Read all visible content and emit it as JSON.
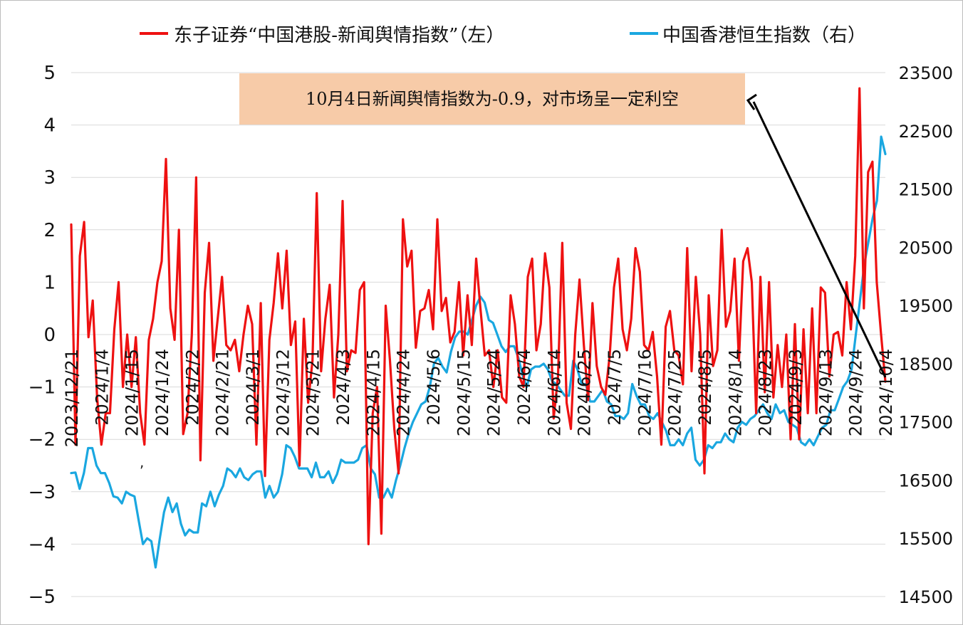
{
  "chart_data": {
    "type": "line",
    "legend": {
      "placement": "top",
      "items": [
        {
          "label": "东子证券“中国港股-新闻舆情指数”（左）",
          "color": "#ee1111"
        },
        {
          "label": "中国香港恒生指数（右）",
          "color": "#1aa7e0"
        }
      ]
    },
    "annotation": "10月4日新闻舆情指数为-0.9，对市场呈一定利空",
    "annotation_bg": "#f7cba8",
    "x_tick_labels": [
      "2023/12/21",
      "2024/1/4",
      "2024/1/15",
      "2024/1/24",
      "2024/2/2",
      "2024/2/21",
      "2024/3/1",
      "2024/3/12",
      "2024/3/21",
      "2024/4/3",
      "2024/4/15",
      "2024/4/24",
      "2024/5/6",
      "2024/5/15",
      "2024/5/24",
      "2024/6/4",
      "2024/6/14",
      "2024/6/25",
      "2024/7/5",
      "2024/7/16",
      "2024/7/25",
      "2024/8/5",
      "2024/8/14",
      "2024/8/23",
      "2024/9/3",
      "2024/9/13",
      "2024/9/24",
      "2024/10/4"
    ],
    "y_left": {
      "min": -5,
      "max": 5,
      "ticks": [
        "5",
        "4",
        "3",
        "2",
        "1",
        "0",
        "−1",
        "−2",
        "−3",
        "−4",
        "−5"
      ]
    },
    "y_right": {
      "min": 14500,
      "max": 23500,
      "ticks": [
        "23500",
        "22500",
        "21500",
        "20500",
        "19500",
        "18500",
        "17500",
        "16500",
        "15500",
        "14500"
      ]
    },
    "grid": true,
    "stray_mark": ",",
    "series": [
      {
        "name": "东子证券“中国港股-新闻舆情指数”（左）",
        "axis": "left",
        "color": "#ee1111",
        "values": [
          2.1,
          -2.1,
          1.5,
          2.15,
          -0.05,
          0.65,
          -1.2,
          -2.1,
          -1.5,
          -1.5,
          0.1,
          1.0,
          -1.0,
          0.0,
          -1.0,
          -0.05,
          -1.5,
          -2.1,
          -0.1,
          0.3,
          1.0,
          1.4,
          3.35,
          0.5,
          -0.1,
          2.0,
          -1.9,
          -1.5,
          0.0,
          3.0,
          -2.4,
          0.8,
          1.75,
          -0.5,
          0.3,
          1.1,
          -0.2,
          -0.3,
          -0.1,
          -0.7,
          0.0,
          0.55,
          0.2,
          -2.1,
          0.6,
          -2.7,
          -0.1,
          0.6,
          1.55,
          0.5,
          1.6,
          -0.2,
          0.25,
          -2.5,
          0.3,
          -1.3,
          -0.5,
          2.7,
          -0.7,
          0.3,
          0.95,
          -1.2,
          0.0,
          2.55,
          -0.7,
          -0.3,
          -0.35,
          0.85,
          1.0,
          -4.0,
          -1.5,
          -1.0,
          -3.8,
          0.55,
          -0.5,
          -1.8,
          -2.65,
          2.2,
          1.3,
          1.6,
          -0.25,
          0.45,
          0.5,
          0.85,
          0.1,
          2.2,
          0.45,
          0.7,
          -0.15,
          0.05,
          1.0,
          -0.4,
          0.75,
          -0.2,
          1.45,
          0.5,
          -0.4,
          -0.3,
          -1.0,
          -0.3,
          -1.2,
          -1.3,
          0.75,
          0.2,
          -0.8,
          -1.0,
          1.1,
          1.45,
          -0.3,
          0.2,
          1.55,
          0.9,
          -1.6,
          -0.8,
          1.75,
          -1.3,
          -1.8,
          0.0,
          1.05,
          -0.2,
          -1.25,
          0.6,
          -0.6,
          -1.0,
          -1.15,
          -0.4,
          0.9,
          1.45,
          0.1,
          -0.3,
          0.3,
          1.65,
          1.2,
          -0.2,
          -0.3,
          0.05,
          -0.8,
          -2.1,
          0.15,
          0.45,
          -0.3,
          -0.4,
          -0.95,
          1.65,
          -0.7,
          1.1,
          0.0,
          -2.65,
          0.75,
          -0.6,
          -0.3,
          2.0,
          0.15,
          0.45,
          1.45,
          -0.5,
          1.4,
          1.65,
          1.0,
          -1.5,
          1.1,
          -1.1,
          1.0,
          -1.2,
          -0.2,
          -1.0,
          0.0,
          -2.0,
          0.2,
          -2.0,
          0.1,
          -1.5,
          0.5,
          -1.5,
          0.9,
          0.8,
          -0.8,
          0.0,
          0.05,
          -0.4,
          1.0,
          0.1,
          1.5,
          4.7,
          0.5,
          3.1,
          3.3,
          1.0,
          0.0,
          -0.9
        ]
      },
      {
        "name": "中国香港恒生指数（右）",
        "axis": "right",
        "color": "#1aa7e0",
        "values": [
          16620,
          16630,
          16350,
          16620,
          17050,
          17050,
          16750,
          16620,
          16620,
          16450,
          16220,
          16200,
          16100,
          16300,
          16250,
          16220,
          15800,
          15400,
          15500,
          15450,
          15000,
          15500,
          15950,
          16200,
          15950,
          16100,
          15750,
          15550,
          15650,
          15600,
          15600,
          16100,
          16050,
          16300,
          16050,
          16250,
          16400,
          16700,
          16650,
          16550,
          16700,
          16550,
          16500,
          16600,
          16650,
          16650,
          16200,
          16400,
          16200,
          16300,
          16600,
          17100,
          17050,
          16900,
          16700,
          16700,
          16700,
          16550,
          16800,
          16550,
          16550,
          16650,
          16450,
          16600,
          16850,
          16800,
          16800,
          16800,
          16850,
          17050,
          17100,
          16700,
          16600,
          16200,
          16200,
          16350,
          16200,
          16500,
          16750,
          17050,
          17300,
          17500,
          17650,
          17800,
          17850,
          18100,
          18500,
          18600,
          18450,
          18350,
          18700,
          18950,
          19050,
          19050,
          19000,
          19250,
          19500,
          19650,
          19550,
          19250,
          19200,
          19000,
          18800,
          18700,
          18800,
          18800,
          18600,
          18300,
          18100,
          18400,
          18450,
          18450,
          18500,
          18400,
          18200,
          18150,
          18050,
          17950,
          17950,
          18550,
          18400,
          18150,
          18150,
          17850,
          17850,
          17950,
          18050,
          17850,
          17800,
          17600,
          17600,
          17550,
          17650,
          18150,
          17950,
          17800,
          17800,
          17600,
          17550,
          17650,
          17500,
          17350,
          17100,
          17100,
          17200,
          17100,
          17300,
          17400,
          16850,
          16750,
          16850,
          17100,
          17050,
          17150,
          17150,
          17300,
          17200,
          17150,
          17400,
          17500,
          17450,
          17550,
          17600,
          17700,
          17800,
          17650,
          17550,
          17800,
          17650,
          17700,
          17500,
          17450,
          17400,
          17150,
          17100,
          17200,
          17100,
          17250,
          17400,
          17450,
          17700,
          17700,
          17900,
          18100,
          18200,
          18400,
          19000,
          19600,
          20200,
          20600,
          21000,
          21300,
          22400,
          22100
        ]
      }
    ]
  }
}
